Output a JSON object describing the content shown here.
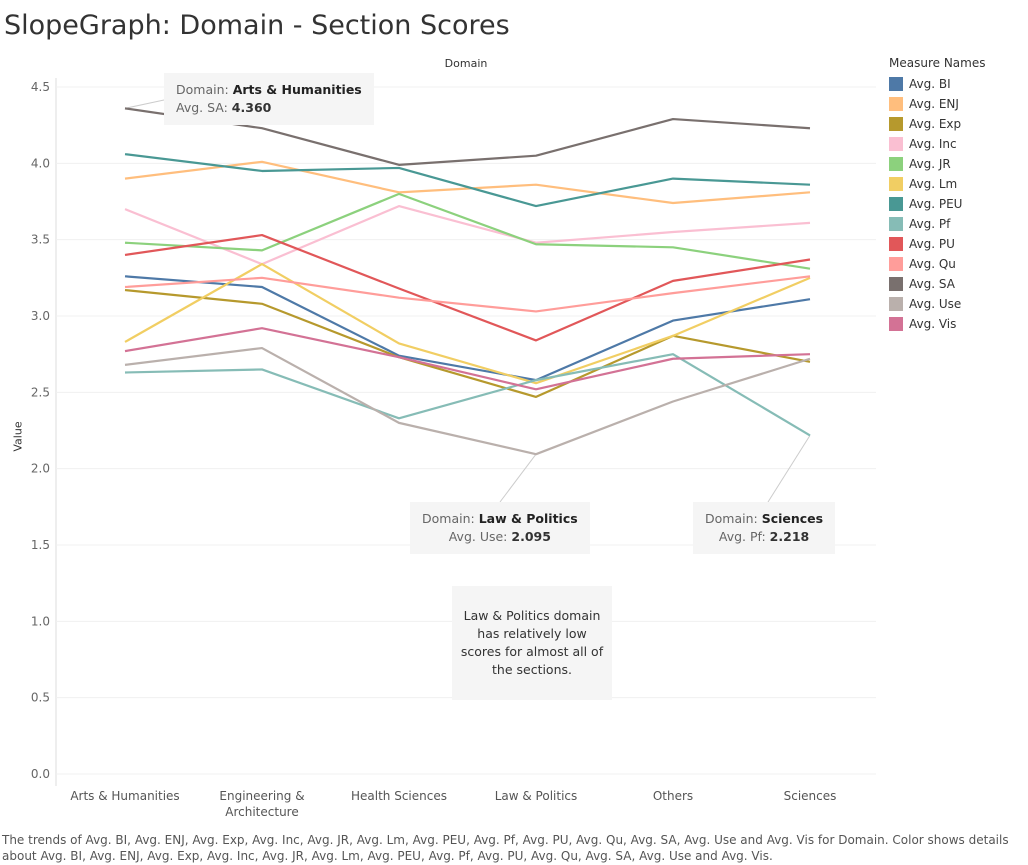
{
  "title": "SlopeGraph: Domain - Section Scores",
  "column_header": "Domain",
  "chart_data": {
    "type": "line",
    "xlabel": "",
    "ylabel": "Value",
    "ylim": [
      0,
      4.5
    ],
    "yticks": [
      "0.0",
      "0.5",
      "1.0",
      "1.5",
      "2.0",
      "2.5",
      "3.0",
      "3.5",
      "4.0",
      "4.5"
    ],
    "categories": [
      "Arts & Humanities",
      "Engineering & Architecture",
      "Health Sciences",
      "Law & Politics",
      "Others",
      "Sciences"
    ],
    "category_lines": [
      [
        "Arts & Humanities"
      ],
      [
        "Engineering &",
        "Architecture"
      ],
      [
        "Health Sciences"
      ],
      [
        "Law & Politics"
      ],
      [
        "Others"
      ],
      [
        "Sciences"
      ]
    ],
    "legend_title": "Measure Names",
    "legend_position": "right",
    "grid": true,
    "series": [
      {
        "name": "Avg. BI",
        "color": "#4e79a7",
        "values": [
          3.26,
          3.19,
          2.74,
          2.58,
          2.97,
          3.11
        ]
      },
      {
        "name": "Avg. ENJ",
        "color": "#ffbe7d",
        "values": [
          3.9,
          4.01,
          3.81,
          3.86,
          3.74,
          3.81
        ]
      },
      {
        "name": "Avg. Exp",
        "color": "#b6992d",
        "values": [
          3.17,
          3.08,
          2.73,
          2.47,
          2.87,
          2.7
        ]
      },
      {
        "name": "Avg. Inc",
        "color": "#fabfd2",
        "values": [
          3.7,
          3.34,
          3.72,
          3.48,
          3.55,
          3.61
        ]
      },
      {
        "name": "Avg. JR",
        "color": "#8cd17d",
        "values": [
          3.48,
          3.43,
          3.8,
          3.47,
          3.45,
          3.31
        ]
      },
      {
        "name": "Avg. Lm",
        "color": "#f1ce63",
        "values": [
          2.83,
          3.34,
          2.82,
          2.56,
          2.87,
          3.25
        ]
      },
      {
        "name": "Avg. PEU",
        "color": "#499894",
        "values": [
          4.06,
          3.95,
          3.97,
          3.72,
          3.9,
          3.86
        ]
      },
      {
        "name": "Avg. Pf",
        "color": "#86bcb6",
        "values": [
          2.63,
          2.65,
          2.33,
          2.58,
          2.75,
          2.218
        ]
      },
      {
        "name": "Avg. PU",
        "color": "#e15759",
        "values": [
          3.4,
          3.53,
          3.18,
          2.84,
          3.23,
          3.37
        ]
      },
      {
        "name": "Avg. Qu",
        "color": "#ff9d9a",
        "values": [
          3.19,
          3.25,
          3.12,
          3.03,
          3.15,
          3.26
        ]
      },
      {
        "name": "Avg. SA",
        "color": "#79706e",
        "values": [
          4.36,
          4.23,
          3.99,
          4.05,
          4.29,
          4.23
        ]
      },
      {
        "name": "Avg. Use",
        "color": "#bab0ac",
        "values": [
          2.68,
          2.79,
          2.3,
          2.095,
          2.44,
          2.72
        ]
      },
      {
        "name": "Avg. Vis",
        "color": "#d37295",
        "values": [
          2.77,
          2.92,
          2.73,
          2.52,
          2.72,
          2.75
        ]
      }
    ]
  },
  "tooltips": [
    {
      "domain_label": "Domain:",
      "domain": "Arts & Humanities",
      "measure_label": "Avg. SA:",
      "value": "4.360"
    },
    {
      "domain_label": "Domain:",
      "domain": "Law & Politics",
      "measure_label": "Avg. Use:",
      "value": "2.095"
    },
    {
      "domain_label": "Domain:",
      "domain": "Sciences",
      "measure_label": "Avg. Pf:",
      "value": "2.218"
    }
  ],
  "annotation": "Law & Politics domain has relatively low scores for almost all of the sections.",
  "caption": "The trends of Avg. BI, Avg. ENJ, Avg. Exp, Avg. Inc, Avg. JR, Avg. Lm, Avg. PEU, Avg. Pf, Avg. PU, Avg. Qu, Avg. SA, Avg. Use and Avg. Vis for Domain.  Color shows details about Avg. BI, Avg. ENJ, Avg. Exp, Avg. Inc, Avg. JR, Avg. Lm, Avg. PEU, Avg. Pf, Avg. PU, Avg. Qu, Avg. SA, Avg. Use and Avg. Vis."
}
